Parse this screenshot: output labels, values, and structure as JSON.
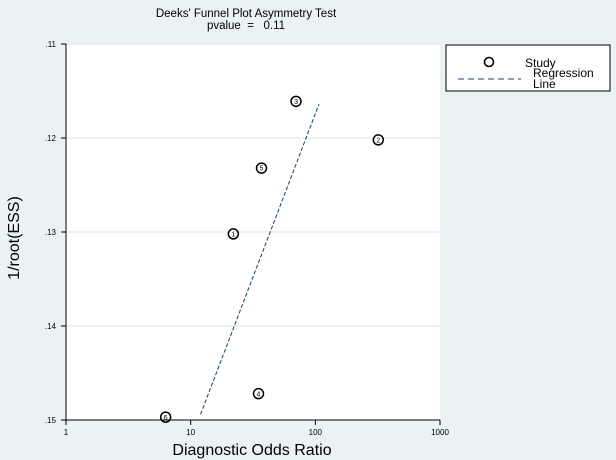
{
  "chart_data": {
    "type": "scatter",
    "title": "Deeks' Funnel Plot Asymmetry Test",
    "subtitle": "pvalue  =   0.11",
    "xlabel": "Diagnostic Odds Ratio",
    "ylabel": "1/root(ESS)",
    "x_scale": "log",
    "xlim": [
      1,
      1000
    ],
    "ylim": [
      0.11,
      0.15
    ],
    "y_reversed": true,
    "x_ticks": [
      1,
      10,
      100,
      1000
    ],
    "x_tick_labels": [
      "1",
      "10",
      "100",
      "1000"
    ],
    "y_ticks": [
      0.11,
      0.12,
      0.13,
      0.14,
      0.15
    ],
    "y_tick_labels": [
      ".11",
      ".12",
      ".13",
      ".14",
      ".15"
    ],
    "grid": "horizontal",
    "legend_position": "right",
    "legend": [
      {
        "label": "Study",
        "marker": "circle"
      },
      {
        "label": "Regression Line",
        "line1": "Regression",
        "line2": "Line",
        "marker": "dashed-line"
      }
    ],
    "points": [
      {
        "label": "1",
        "x": 22,
        "y": 0.1302
      },
      {
        "label": "2",
        "x": 320,
        "y": 0.1202
      },
      {
        "label": "3",
        "x": 70,
        "y": 0.1161
      },
      {
        "label": "4",
        "x": 35,
        "y": 0.1472
      },
      {
        "label": "5",
        "x": 37,
        "y": 0.1232
      },
      {
        "label": "6",
        "x": 6.3,
        "y": 0.1497
      }
    ],
    "regression_line": {
      "x": [
        12,
        107
      ],
      "y": [
        0.1494,
        0.1164
      ]
    },
    "colors": {
      "background": "#eaf2f3",
      "plot_background": "#ffffff",
      "legend_background": "#ffffff",
      "grid": "#d9e6e9",
      "axis": "#000000",
      "marker": "#000000",
      "regression": "#1c3f66"
    }
  }
}
